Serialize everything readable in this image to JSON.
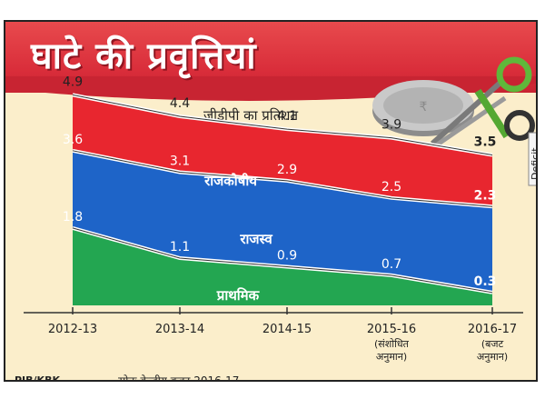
{
  "header": {
    "title": "घाटे की प्रवृत्तियां",
    "subtitle": "जीडीपी का प्रतिशत"
  },
  "decoration": {
    "tag_label": "Deficit",
    "icons": [
      "coin-icon",
      "scissors-icon"
    ]
  },
  "footer": {
    "credit": "PIB/KBK",
    "source": "स्रोतः केन्द्रीय बजट 2016-17"
  },
  "colors": {
    "banner": "#d92d3a",
    "fiscal": "#e8262f",
    "revenue": "#1e64c8",
    "primary": "#23a651",
    "background": "#fbeecb"
  },
  "chart_data": {
    "type": "area",
    "categories": [
      "2012-13",
      "2013-14",
      "2014-15",
      "2015-16",
      "2016-17"
    ],
    "category_notes": [
      "",
      "",
      "",
      "(संशोधित अनुमान)",
      "(बजट अनुमान)"
    ],
    "series": [
      {
        "name": "राजकोषीय",
        "values": [
          4.9,
          4.4,
          4.1,
          3.9,
          3.5
        ],
        "labels": [
          "4.9",
          "4.4",
          "4.1",
          "3.9",
          "3.5"
        ]
      },
      {
        "name": "राजस्व",
        "values": [
          3.6,
          3.1,
          2.9,
          2.5,
          2.3
        ],
        "labels": [
          "3.6",
          "3.1",
          "2.9",
          "2.5",
          "2.3"
        ]
      },
      {
        "name": "प्राथमिक",
        "values": [
          1.8,
          1.1,
          0.9,
          0.7,
          0.3
        ],
        "labels": [
          "1.8",
          "1.1",
          "0.9",
          "0.7",
          "0.3"
        ]
      }
    ],
    "ylim": [
      0,
      5.5
    ],
    "grid": false,
    "legend": "inline labels"
  }
}
